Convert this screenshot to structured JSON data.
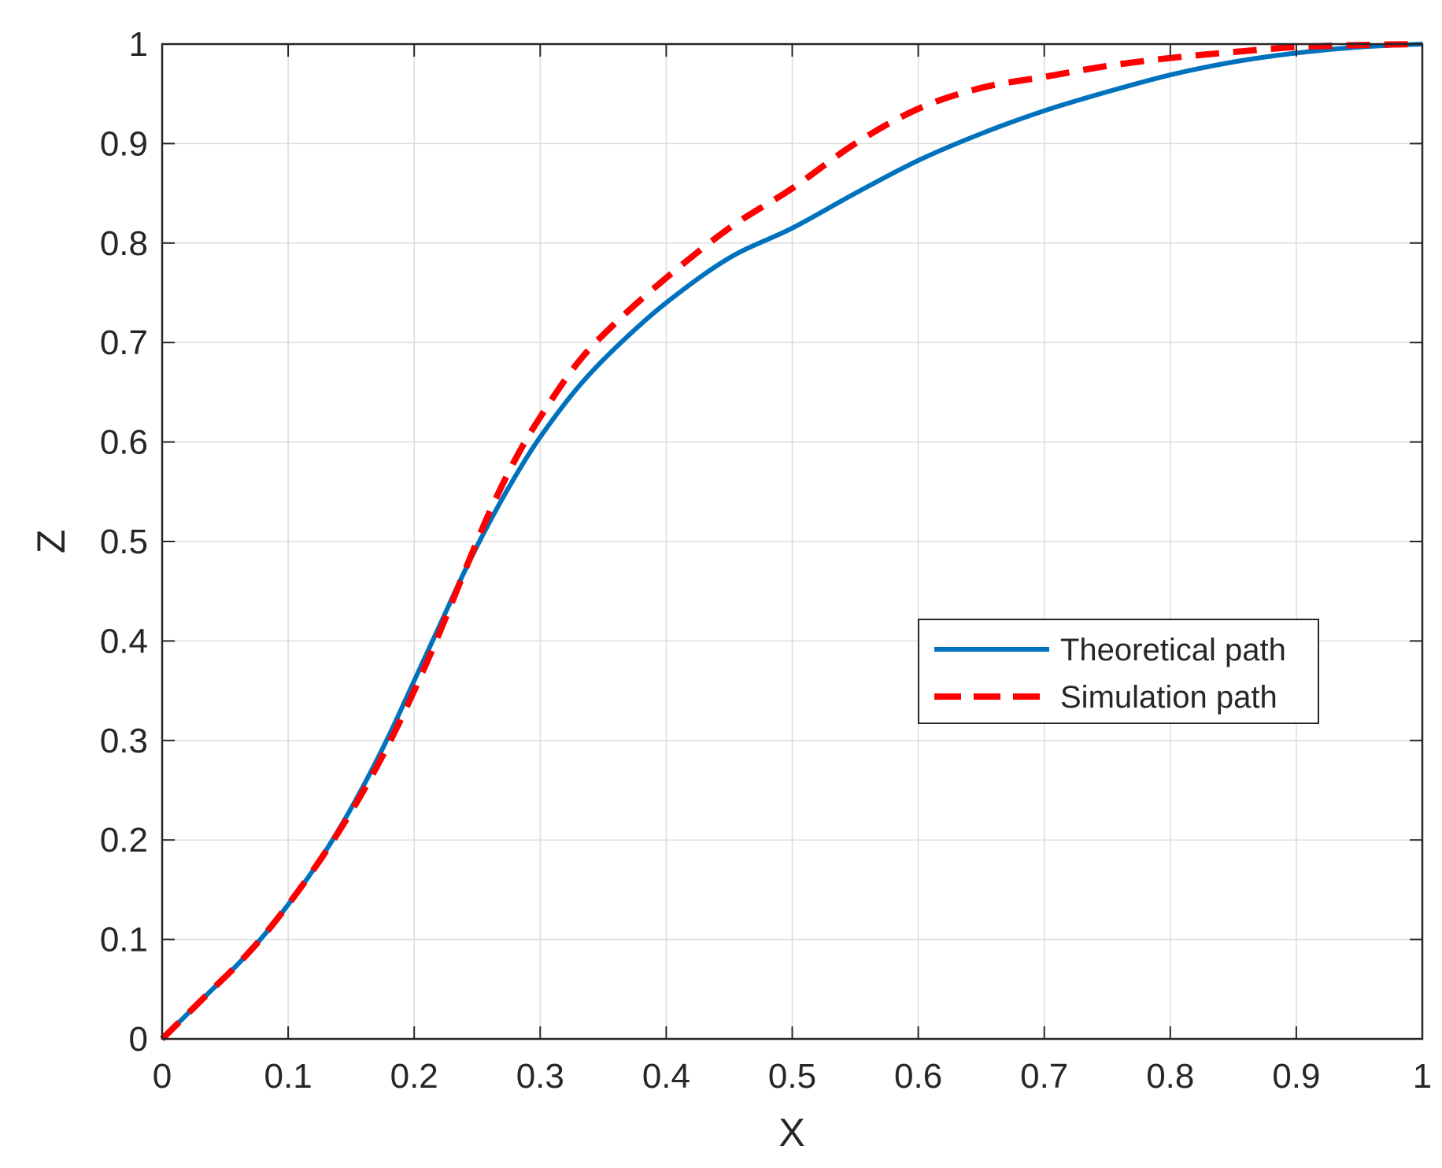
{
  "chart_data": {
    "type": "line",
    "title": "",
    "xlabel": "X",
    "ylabel": "Z",
    "xlim": [
      0,
      1
    ],
    "ylim": [
      0,
      1
    ],
    "grid": true,
    "legend_position": "right",
    "xticks": [
      "0",
      "0.1",
      "0.2",
      "0.3",
      "0.4",
      "0.5",
      "0.6",
      "0.7",
      "0.8",
      "0.9",
      "1"
    ],
    "yticks": [
      "0",
      "0.1",
      "0.2",
      "0.3",
      "0.4",
      "0.5",
      "0.6",
      "0.7",
      "0.8",
      "0.9",
      "1"
    ],
    "series": [
      {
        "name": "Theoretical path",
        "color": "#0072BD",
        "style": "solid",
        "x": [
          0,
          0.02,
          0.04,
          0.06,
          0.08,
          0.1,
          0.12,
          0.14,
          0.16,
          0.18,
          0.2,
          0.22,
          0.24,
          0.26,
          0.28,
          0.3,
          0.33,
          0.36,
          0.4,
          0.45,
          0.5,
          0.55,
          0.6,
          0.65,
          0.7,
          0.75,
          0.8,
          0.85,
          0.9,
          0.95,
          1.0
        ],
        "y": [
          0,
          0.025,
          0.05,
          0.075,
          0.103,
          0.135,
          0.17,
          0.21,
          0.255,
          0.305,
          0.36,
          0.415,
          0.47,
          0.52,
          0.565,
          0.605,
          0.655,
          0.695,
          0.74,
          0.785,
          0.815,
          0.85,
          0.883,
          0.91,
          0.933,
          0.952,
          0.969,
          0.982,
          0.991,
          0.997,
          1.0
        ]
      },
      {
        "name": "Simulation path",
        "color": "#FF0000",
        "style": "dashed",
        "x": [
          0,
          0.02,
          0.04,
          0.06,
          0.08,
          0.1,
          0.12,
          0.14,
          0.16,
          0.18,
          0.2,
          0.22,
          0.24,
          0.26,
          0.28,
          0.3,
          0.33,
          0.36,
          0.4,
          0.45,
          0.5,
          0.55,
          0.6,
          0.65,
          0.7,
          0.75,
          0.8,
          0.85,
          0.9,
          0.95,
          1.0
        ],
        "y": [
          0,
          0.025,
          0.05,
          0.075,
          0.103,
          0.135,
          0.17,
          0.208,
          0.25,
          0.297,
          0.35,
          0.408,
          0.47,
          0.53,
          0.582,
          0.625,
          0.68,
          0.72,
          0.765,
          0.815,
          0.855,
          0.9,
          0.935,
          0.956,
          0.967,
          0.978,
          0.986,
          0.992,
          0.997,
          0.999,
          1.0
        ]
      }
    ]
  }
}
